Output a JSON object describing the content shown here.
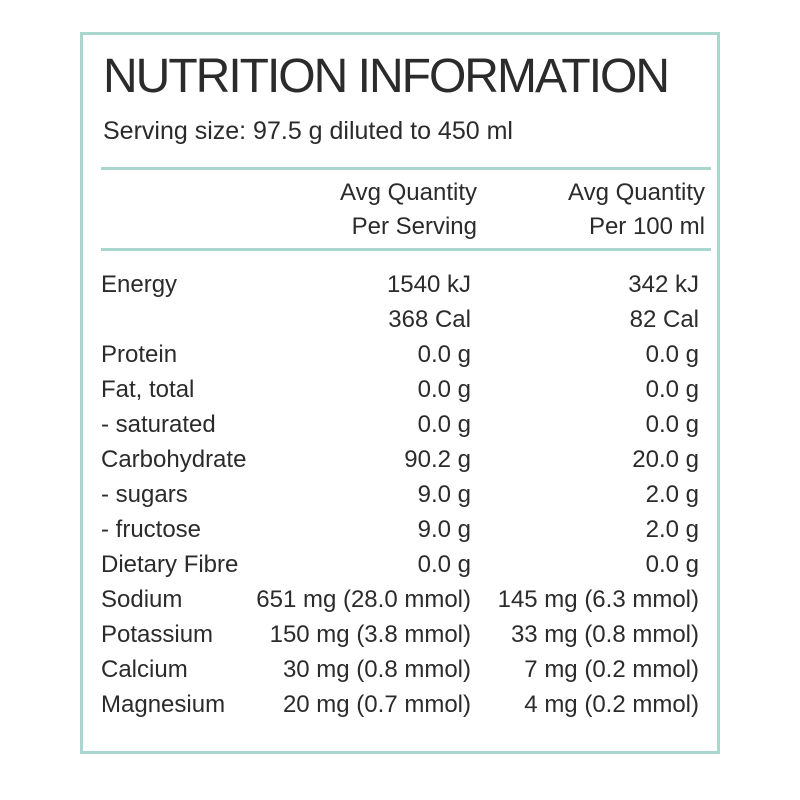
{
  "title": "NUTRITION INFORMATION",
  "serving_size": "Serving size: 97.5 g diluted to 450 ml",
  "columns": {
    "per_serving": [
      "Avg Quantity",
      "Per Serving"
    ],
    "per_100ml": [
      "Avg Quantity",
      "Per 100 ml"
    ]
  },
  "rows": [
    {
      "label": "Energy",
      "per_serving": "1540 kJ",
      "per_100ml": "342 kJ"
    },
    {
      "label": "",
      "per_serving": "368 Cal",
      "per_100ml": "82 Cal"
    },
    {
      "label": "Protein",
      "per_serving": "0.0 g",
      "per_100ml": "0.0 g"
    },
    {
      "label": "Fat, total",
      "per_serving": "0.0 g",
      "per_100ml": "0.0 g"
    },
    {
      "label": "- saturated",
      "per_serving": "0.0 g",
      "per_100ml": "0.0 g"
    },
    {
      "label": "Carbohydrate",
      "per_serving": "90.2 g",
      "per_100ml": "20.0 g"
    },
    {
      "label": "- sugars",
      "per_serving": "9.0 g",
      "per_100ml": "2.0 g"
    },
    {
      "label": "- fructose",
      "per_serving": "9.0 g",
      "per_100ml": "2.0 g"
    },
    {
      "label": "Dietary Fibre",
      "per_serving": "0.0 g",
      "per_100ml": "0.0 g"
    },
    {
      "label": "Sodium",
      "per_serving": "651 mg (28.0 mmol)",
      "per_100ml": "145 mg (6.3 mmol)"
    },
    {
      "label": "Potassium",
      "per_serving": "150 mg (3.8 mmol)",
      "per_100ml": "33 mg (0.8 mmol)"
    },
    {
      "label": "Calcium",
      "per_serving": "30 mg (0.8 mmol)",
      "per_100ml": "7 mg (0.2 mmol)"
    },
    {
      "label": "Magnesium",
      "per_serving": "20 mg (0.7 mmol)",
      "per_100ml": "4 mg (0.2 mmol)"
    }
  ],
  "colors": {
    "border": "#a9d6cf",
    "text": "#2b2b2b"
  }
}
